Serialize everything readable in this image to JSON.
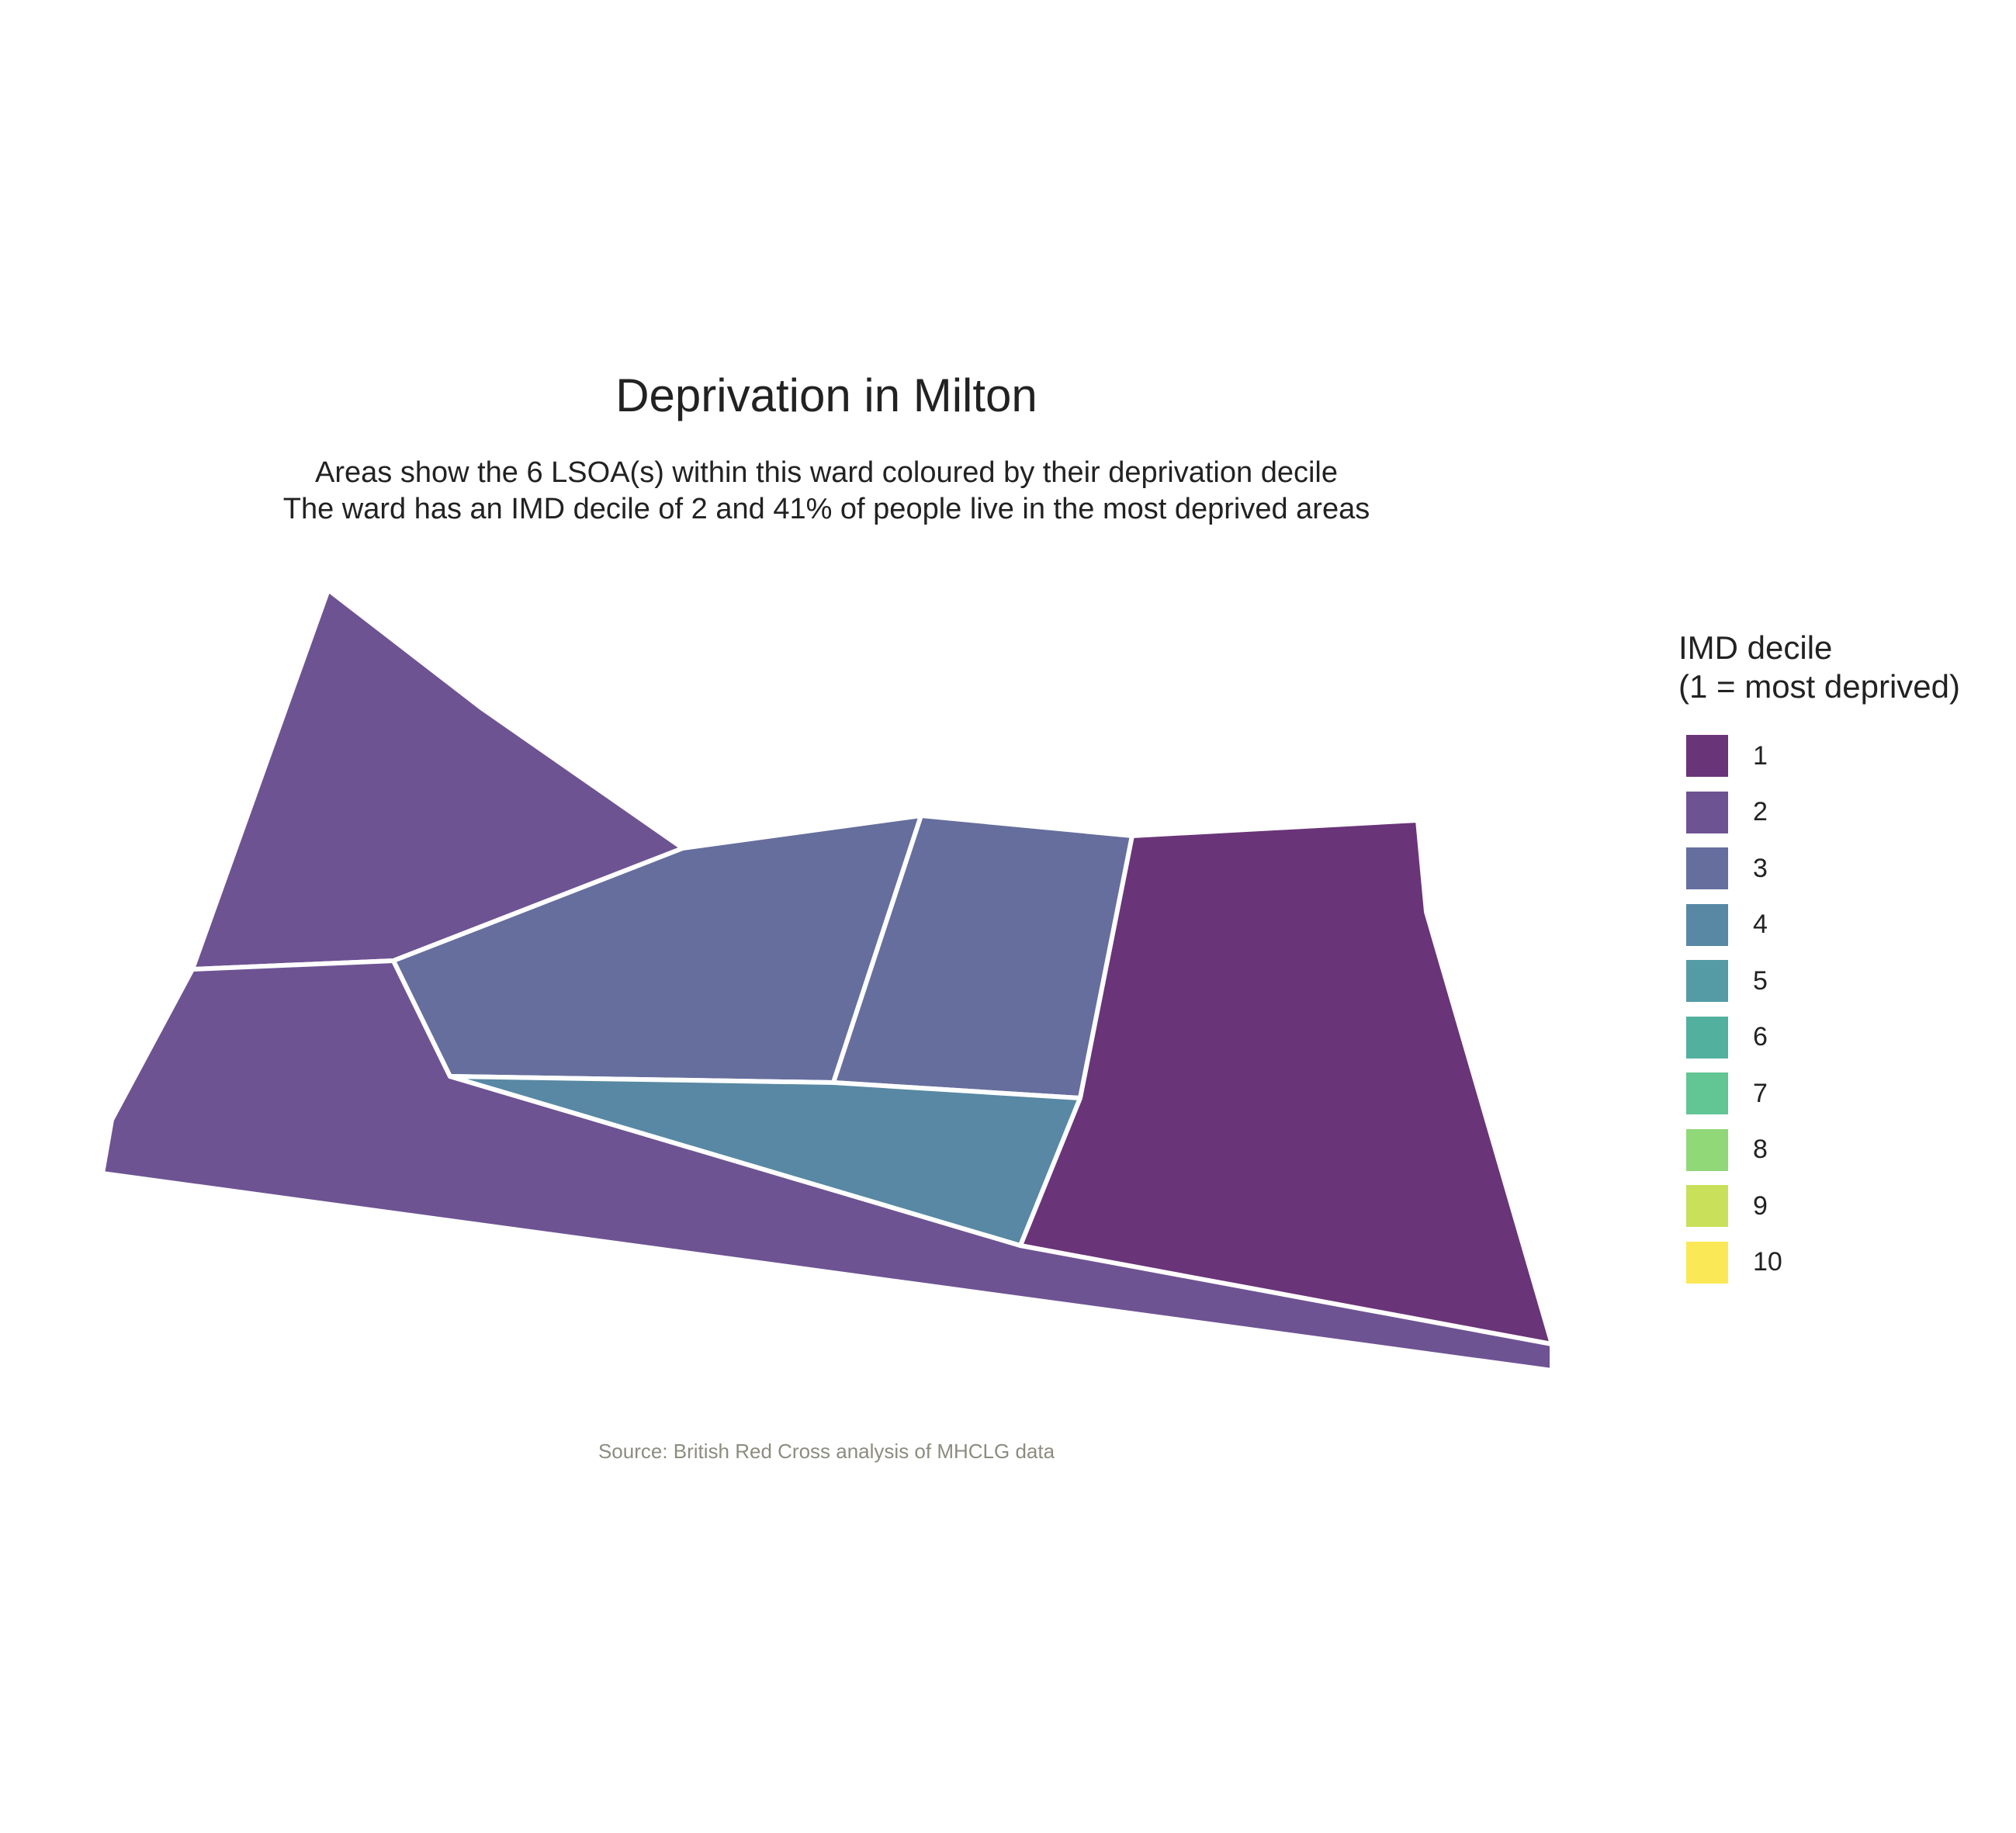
{
  "map": {
    "title": "Deprivation in Milton",
    "subtitle_line1": "Areas show the 6 LSOA(s) within this ward coloured by their deprivation decile",
    "subtitle_line2": "The ward has an IMD decile of 2 and 41% of people live in the most deprived areas",
    "source": "Source: British Red Cross analysis of MHCLG data",
    "lsoa_count": 6,
    "areas": [
      {
        "id": "north-west-lsoa",
        "decile": 2
      },
      {
        "id": "south-strip-lsoa",
        "decile": 2
      },
      {
        "id": "central-lsoa",
        "decile": 3
      },
      {
        "id": "east-central-lsoa",
        "decile": 3
      },
      {
        "id": "south-central-lsoa",
        "decile": 4
      },
      {
        "id": "east-lsoa",
        "decile": 1
      }
    ]
  },
  "legend": {
    "title_line1": "IMD decile",
    "title_line2": "(1 = most deprived)",
    "items": [
      {
        "label": "1",
        "color": "#6a3478"
      },
      {
        "label": "2",
        "color": "#6e5393"
      },
      {
        "label": "3",
        "color": "#656e9d"
      },
      {
        "label": "4",
        "color": "#5888a3"
      },
      {
        "label": "5",
        "color": "#549ba6"
      },
      {
        "label": "6",
        "color": "#52b09e"
      },
      {
        "label": "7",
        "color": "#62c594"
      },
      {
        "label": "8",
        "color": "#91d878"
      },
      {
        "label": "9",
        "color": "#c8e05a"
      },
      {
        "label": "10",
        "color": "#fbe856"
      }
    ]
  }
}
